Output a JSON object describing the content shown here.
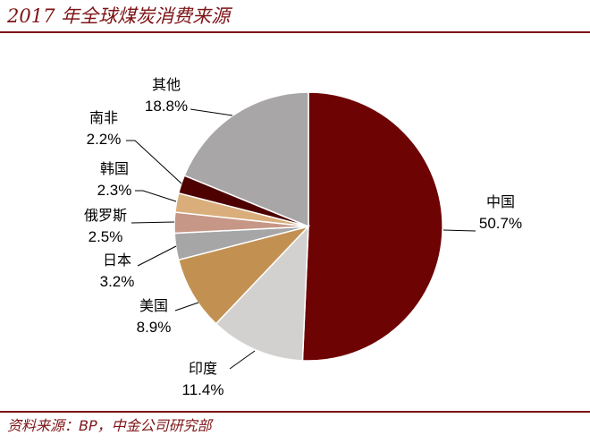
{
  "footer": {
    "source": "资料来源：BP，中金公司研究部"
  },
  "theme": {
    "accent_color": "#7d1416"
  },
  "chart_data": {
    "type": "pie",
    "title": "2017 年全球煤炭消费来源",
    "categories": [
      "中国",
      "印度",
      "美国",
      "日本",
      "俄罗斯",
      "韩国",
      "南非",
      "其他"
    ],
    "values": [
      50.7,
      11.4,
      8.9,
      3.2,
      2.5,
      2.3,
      2.2,
      18.8
    ],
    "value_labels": [
      "50.7%",
      "11.4%",
      "8.9%",
      "3.2%",
      "2.5%",
      "2.3%",
      "2.2%",
      "18.8%"
    ],
    "unit": "%",
    "colors": [
      "#6e0304",
      "#d3d0d0",
      "#c29152",
      "#a7a6a6",
      "#c69786",
      "#d9ae7b",
      "#4e0000",
      "#a9a6a7"
    ],
    "legend": "none (labels beside slices)"
  }
}
